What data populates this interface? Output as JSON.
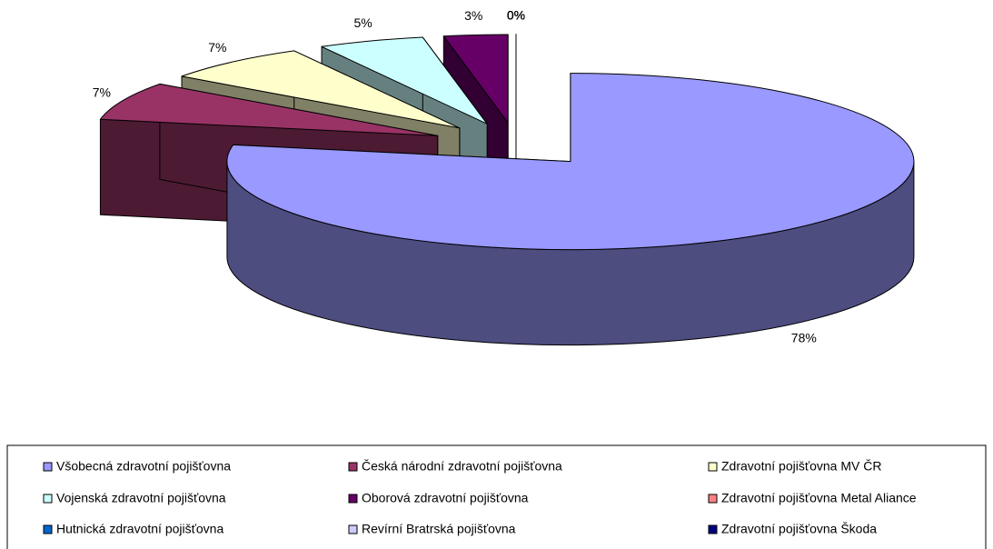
{
  "chart_data": {
    "type": "pie3d",
    "categories": [
      "Všobecná zdravotní pojišťovna",
      "Česká národní zdravotní pojišťovna",
      "Zdravotní pojišťovna MV ČR",
      "Vojenská zdravotní pojišťovna",
      "Oborová zdravotní pojišťovna",
      "Zdravotní pojišťovna Metal Aliance",
      "Hutnická zdravotní pojišťovna",
      "Revírní Bratrská pojišťovna",
      "Zdravotní pojišťovna Škoda"
    ],
    "values": [
      78,
      7,
      7,
      5,
      3,
      0,
      0,
      0,
      0
    ],
    "value_labels": [
      "78%",
      "7%",
      "7%",
      "5%",
      "3%",
      "0%",
      "0%",
      "0%",
      "0%"
    ],
    "colors": [
      "#9999ff",
      "#993366",
      "#ffffcc",
      "#ccffff",
      "#660066",
      "#ff8080",
      "#0066cc",
      "#ccccff",
      "#000080"
    ],
    "legend": "bottom"
  }
}
